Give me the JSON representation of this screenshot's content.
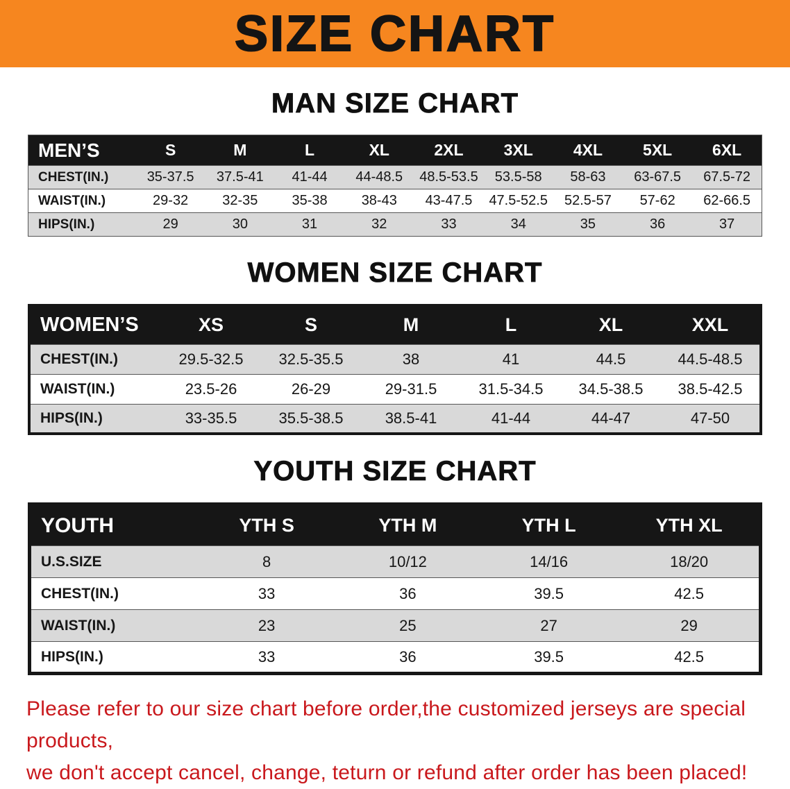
{
  "banner": {
    "title": "SIZE CHART",
    "bg_color": "#f6861f"
  },
  "colors": {
    "table_header_bg": "#161616",
    "row_alt_gray": "#d9d9d9",
    "footer_text_red": "#c9181c"
  },
  "sections": [
    {
      "heading": "MAN SIZE CHART",
      "table": {
        "header": [
          "MEN’S",
          "S",
          "M",
          "L",
          "XL",
          "2XL",
          "3XL",
          "4XL",
          "5XL",
          "6XL"
        ],
        "rows": [
          [
            "CHEST(IN.)",
            "35-37.5",
            "37.5-41",
            "41-44",
            "44-48.5",
            "48.5-53.5",
            "53.5-58",
            "58-63",
            "63-67.5",
            "67.5-72"
          ],
          [
            "WAIST(IN.)",
            "29-32",
            "32-35",
            "35-38",
            "38-43",
            "43-47.5",
            "47.5-52.5",
            "52.5-57",
            "57-62",
            "62-66.5"
          ],
          [
            "HIPS(IN.)",
            "29",
            "30",
            "31",
            "32",
            "33",
            "34",
            "35",
            "36",
            "37"
          ]
        ]
      }
    },
    {
      "heading": "WOMEN SIZE CHART",
      "table": {
        "header": [
          "WOMEN’S",
          "XS",
          "S",
          "M",
          "L",
          "XL",
          "XXL"
        ],
        "rows": [
          [
            "CHEST(IN.)",
            "29.5-32.5",
            "32.5-35.5",
            "38",
            "41",
            "44.5",
            "44.5-48.5"
          ],
          [
            "WAIST(IN.)",
            "23.5-26",
            "26-29",
            "29-31.5",
            "31.5-34.5",
            "34.5-38.5",
            "38.5-42.5"
          ],
          [
            "HIPS(IN.)",
            "33-35.5",
            "35.5-38.5",
            "38.5-41",
            "41-44",
            "44-47",
            "47-50"
          ]
        ]
      }
    },
    {
      "heading": "YOUTH SIZE CHART",
      "table": {
        "header": [
          "YOUTH",
          "YTH S",
          "YTH M",
          "YTH L",
          "YTH XL"
        ],
        "rows": [
          [
            "U.S.SIZE",
            "8",
            "10/12",
            "14/16",
            "18/20"
          ],
          [
            "CHEST(IN.)",
            "33",
            "36",
            "39.5",
            "42.5"
          ],
          [
            "WAIST(IN.)",
            "23",
            "25",
            "27",
            "29"
          ],
          [
            "HIPS(IN.)",
            "33",
            "36",
            "39.5",
            "42.5"
          ]
        ]
      }
    }
  ],
  "footer": {
    "lines": [
      "Please refer to our size chart before order,the customized jerseys are special products,",
      "we don't accept cancel, change, teturn or refund after order has been placed!"
    ]
  }
}
